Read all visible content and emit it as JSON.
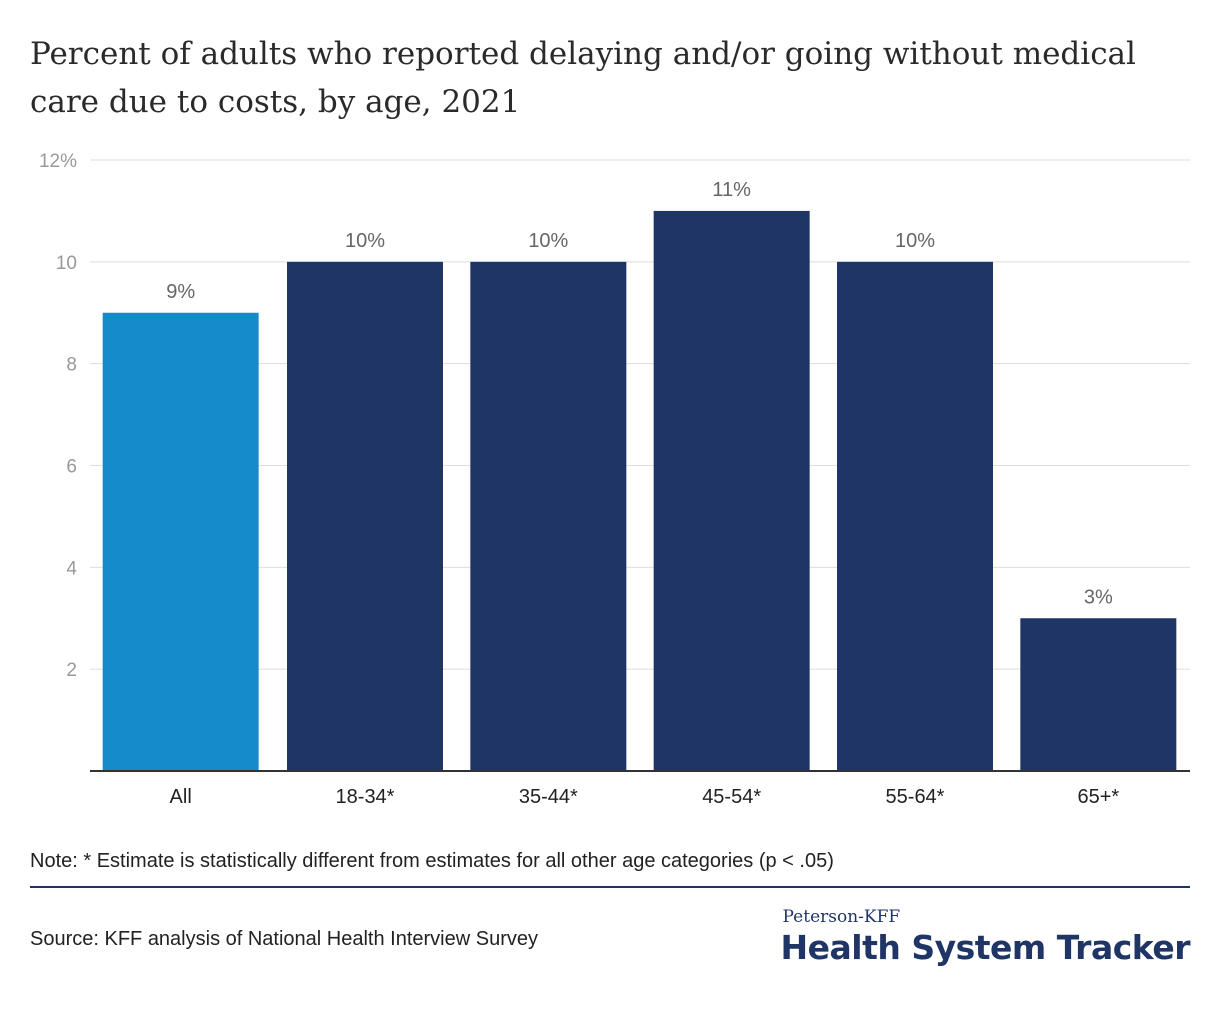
{
  "title": "Percent of adults who reported delaying and/or going without medical care due to costs, by age, 2021",
  "note": "Note: * Estimate is statistically different from estimates for all other age categories (p < .05)",
  "source": "Source: KFF analysis of National Health Interview Survey",
  "brand": {
    "top": "Peterson-KFF",
    "main": "Health System Tracker"
  },
  "colors": {
    "highlight": "#168bcc",
    "bar": "#1f3566",
    "grid": "#dddddd",
    "axis": "#333333",
    "tick_text": "#999999",
    "label_text": "#666666"
  },
  "chart_data": {
    "type": "bar",
    "title": "Percent of adults who reported delaying and/or going without medical care due to costs, by age, 2021",
    "categories": [
      "All",
      "18-34*",
      "35-44*",
      "45-54*",
      "55-64*",
      "65+*"
    ],
    "values": [
      9,
      10,
      10,
      11,
      10,
      3
    ],
    "data_labels": [
      "9%",
      "10%",
      "10%",
      "11%",
      "10%",
      "3%"
    ],
    "highlight_index": 0,
    "ylim": [
      0,
      12
    ],
    "yticks": [
      2,
      4,
      6,
      8,
      10,
      12
    ],
    "ytick_labels": [
      "2",
      "4",
      "6",
      "8",
      "10",
      "12%"
    ],
    "xlabel": "",
    "ylabel": "",
    "grid": true,
    "legend": "none"
  }
}
